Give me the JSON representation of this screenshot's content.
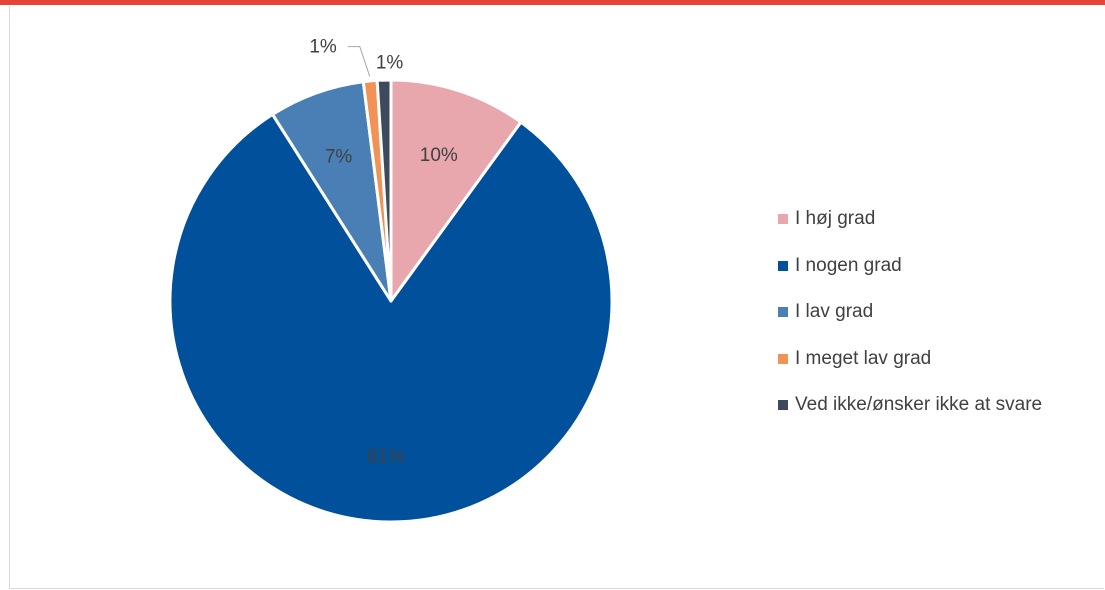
{
  "chart_data": {
    "type": "pie",
    "title": "",
    "categories": [
      "I høj grad",
      "I nogen grad",
      "I lav grad",
      "I meget lav grad",
      "Ved ikke/ønsker ikke at svare"
    ],
    "values": [
      10,
      81,
      7,
      1,
      1
    ],
    "data_labels": [
      "10%",
      "81%",
      "7%",
      "1%",
      "1%"
    ],
    "colors": [
      "#e8a7ad",
      "#00509b",
      "#4a7fb5",
      "#f29257",
      "#3d4a5e"
    ],
    "legend_position": "right",
    "start_angle": "12 o'clock",
    "direction": "clockwise"
  }
}
